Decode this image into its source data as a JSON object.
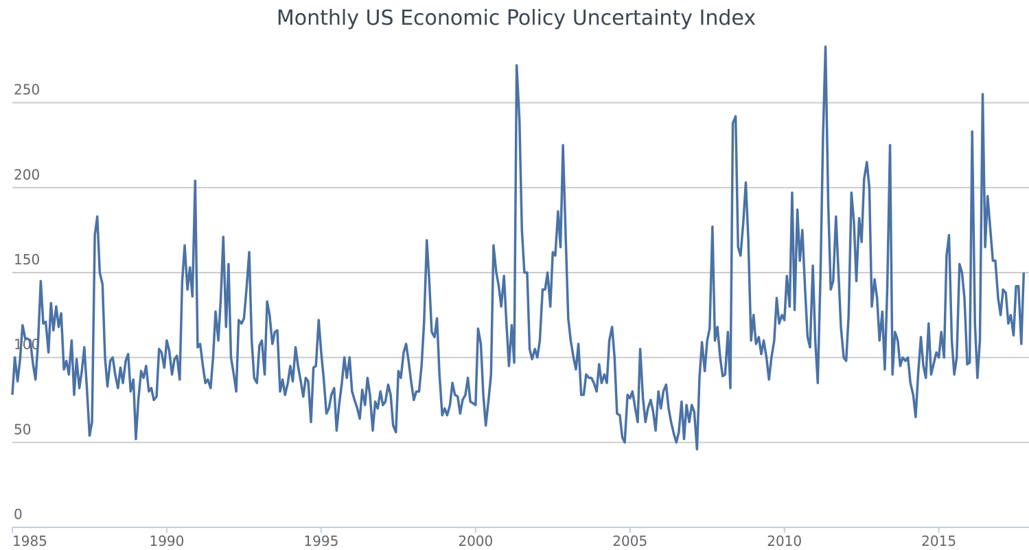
{
  "chart_data": {
    "type": "line",
    "title": "Monthly US Economic Policy Uncertainty Index",
    "x": [
      1985,
      1985.08,
      1985.17,
      1985.25,
      1985.33,
      1985.42,
      1985.5,
      1985.58,
      1985.67,
      1985.75,
      1985.83,
      1985.92,
      1986,
      1986.08,
      1986.17,
      1986.25,
      1986.33,
      1986.42,
      1986.5,
      1986.58,
      1986.67,
      1986.75,
      1986.83,
      1986.92,
      1987,
      1987.08,
      1987.17,
      1987.25,
      1987.33,
      1987.42,
      1987.5,
      1987.58,
      1987.67,
      1987.75,
      1987.83,
      1987.92,
      1988,
      1988.08,
      1988.17,
      1988.25,
      1988.33,
      1988.42,
      1988.5,
      1988.58,
      1988.67,
      1988.75,
      1988.83,
      1988.92,
      1989,
      1989.08,
      1989.17,
      1989.25,
      1989.33,
      1989.42,
      1989.5,
      1989.58,
      1989.67,
      1989.75,
      1989.83,
      1989.92,
      1990,
      1990.08,
      1990.17,
      1990.25,
      1990.33,
      1990.42,
      1990.5,
      1990.58,
      1990.67,
      1990.75,
      1990.83,
      1990.92,
      1991,
      1991.08,
      1991.17,
      1991.25,
      1991.33,
      1991.42,
      1991.5,
      1991.58,
      1991.67,
      1991.75,
      1991.83,
      1991.92,
      1992,
      1992.08,
      1992.17,
      1992.25,
      1992.33,
      1992.42,
      1992.5,
      1992.58,
      1992.67,
      1992.75,
      1992.83,
      1992.92,
      1993,
      1993.08,
      1993.17,
      1993.25,
      1993.33,
      1993.42,
      1993.5,
      1993.58,
      1993.67,
      1993.75,
      1993.83,
      1993.92,
      1994,
      1994.08,
      1994.17,
      1994.25,
      1994.33,
      1994.42,
      1994.5,
      1994.58,
      1994.67,
      1994.75,
      1994.83,
      1994.92,
      1995,
      1995.08,
      1995.17,
      1995.25,
      1995.33,
      1995.42,
      1995.5,
      1995.58,
      1995.67,
      1995.75,
      1995.83,
      1995.92,
      1996,
      1996.08,
      1996.17,
      1996.25,
      1996.33,
      1996.42,
      1996.5,
      1996.58,
      1996.67,
      1996.75,
      1996.83,
      1996.92,
      1997,
      1997.08,
      1997.17,
      1997.25,
      1997.33,
      1997.42,
      1997.5,
      1997.58,
      1997.67,
      1997.75,
      1997.83,
      1997.92,
      1998,
      1998.08,
      1998.17,
      1998.25,
      1998.33,
      1998.42,
      1998.5,
      1998.58,
      1998.67,
      1998.75,
      1998.83,
      1998.92,
      1999,
      1999.08,
      1999.17,
      1999.25,
      1999.33,
      1999.42,
      1999.5,
      1999.58,
      1999.67,
      1999.75,
      1999.83,
      1999.92,
      2000,
      2000.08,
      2000.17,
      2000.25,
      2000.33,
      2000.42,
      2000.5,
      2000.58,
      2000.67,
      2000.75,
      2000.83,
      2000.92,
      2001,
      2001.08,
      2001.17,
      2001.25,
      2001.33,
      2001.42,
      2001.5,
      2001.58,
      2001.67,
      2001.75,
      2001.83,
      2001.92,
      2002,
      2002.08,
      2002.17,
      2002.25,
      2002.33,
      2002.42,
      2002.5,
      2002.58,
      2002.67,
      2002.75,
      2002.83,
      2002.92,
      2003,
      2003.08,
      2003.17,
      2003.25,
      2003.33,
      2003.42,
      2003.5,
      2003.58,
      2003.67,
      2003.75,
      2003.83,
      2003.92,
      2004,
      2004.08,
      2004.17,
      2004.25,
      2004.33,
      2004.42,
      2004.5,
      2004.58,
      2004.67,
      2004.75,
      2004.83,
      2004.92,
      2005,
      2005.08,
      2005.17,
      2005.25,
      2005.33,
      2005.42,
      2005.5,
      2005.58,
      2005.67,
      2005.75,
      2005.83,
      2005.92,
      2006,
      2006.08,
      2006.17,
      2006.25,
      2006.33,
      2006.42,
      2006.5,
      2006.58,
      2006.67,
      2006.75,
      2006.83,
      2006.92,
      2007,
      2007.08,
      2007.17,
      2007.25,
      2007.33,
      2007.42,
      2007.5,
      2007.58,
      2007.67,
      2007.75,
      2007.83,
      2007.92,
      2008,
      2008.08,
      2008.17,
      2008.25,
      2008.33,
      2008.42,
      2008.5,
      2008.58,
      2008.67,
      2008.75,
      2008.83,
      2008.92,
      2009,
      2009.08,
      2009.17,
      2009.25,
      2009.33,
      2009.42,
      2009.5,
      2009.58,
      2009.67,
      2009.75,
      2009.83,
      2009.92,
      2010,
      2010.08,
      2010.17,
      2010.25,
      2010.33,
      2010.42,
      2010.5,
      2010.58,
      2010.67,
      2010.75,
      2010.83,
      2010.92,
      2011,
      2011.08,
      2011.17,
      2011.25,
      2011.33,
      2011.42,
      2011.5,
      2011.58,
      2011.67,
      2011.75,
      2011.83,
      2011.92,
      2012,
      2012.08,
      2012.17,
      2012.25,
      2012.33,
      2012.42,
      2012.5,
      2012.58,
      2012.67,
      2012.75,
      2012.83,
      2012.92,
      2013,
      2013.08,
      2013.17,
      2013.25,
      2013.33,
      2013.42,
      2013.5,
      2013.58,
      2013.67,
      2013.75,
      2013.83,
      2013.92,
      2014,
      2014.08,
      2014.17,
      2014.25,
      2014.33,
      2014.42,
      2014.5,
      2014.58,
      2014.67,
      2014.75,
      2014.83,
      2014.92,
      2015,
      2015.08,
      2015.17,
      2015.25,
      2015.33,
      2015.42,
      2015.5,
      2015.58,
      2015.67,
      2015.75,
      2015.83,
      2015.92,
      2016,
      2016.08,
      2016.17,
      2016.25,
      2016.33,
      2016.42,
      2016.5,
      2016.58,
      2016.67,
      2016.75,
      2016.83,
      2016.92,
      2017,
      2017.08,
      2017.17,
      2017.25,
      2017.33,
      2017.42,
      2017.5,
      2017.58,
      2017.67,
      2017.75
    ],
    "values": [
      78,
      100,
      86,
      99,
      119,
      111,
      111,
      110,
      96,
      87,
      108,
      145,
      120,
      121,
      103,
      132,
      116,
      130,
      118,
      126,
      93,
      98,
      90,
      110,
      78,
      99,
      82,
      92,
      106,
      80,
      54,
      62,
      172,
      183,
      150,
      143,
      100,
      83,
      98,
      100,
      90,
      82,
      94,
      85,
      98,
      102,
      80,
      87,
      52,
      75,
      92,
      88,
      95,
      80,
      82,
      75,
      77,
      105,
      103,
      94,
      110,
      104,
      90,
      99,
      101,
      87,
      145,
      166,
      140,
      153,
      136,
      204,
      106,
      108,
      95,
      85,
      87,
      82,
      100,
      127,
      110,
      135,
      171,
      118,
      155,
      100,
      90,
      80,
      122,
      120,
      123,
      140,
      162,
      110,
      88,
      85,
      107,
      110,
      90,
      133,
      125,
      108,
      115,
      116,
      80,
      87,
      78,
      85,
      95,
      86,
      106,
      95,
      87,
      77,
      88,
      86,
      62,
      94,
      95,
      122,
      103,
      88,
      67,
      70,
      78,
      82,
      57,
      72,
      85,
      100,
      88,
      100,
      80,
      75,
      70,
      64,
      81,
      72,
      88,
      78,
      57,
      74,
      70,
      80,
      72,
      74,
      84,
      78,
      60,
      56,
      92,
      88,
      103,
      108,
      98,
      85,
      75,
      80,
      80,
      95,
      120,
      169,
      145,
      115,
      112,
      123,
      90,
      66,
      70,
      66,
      72,
      85,
      78,
      77,
      67,
      75,
      78,
      88,
      74,
      73,
      72,
      117,
      108,
      78,
      60,
      75,
      90,
      166,
      150,
      142,
      130,
      148,
      120,
      95,
      119,
      97,
      272,
      240,
      175,
      150,
      150,
      105,
      99,
      105,
      100,
      110,
      140,
      140,
      150,
      130,
      162,
      160,
      186,
      165,
      225,
      170,
      123,
      110,
      100,
      93,
      108,
      78,
      78,
      90,
      88,
      88,
      85,
      80,
      96,
      85,
      90,
      85,
      110,
      118,
      100,
      67,
      66,
      53,
      50,
      78,
      76,
      80,
      70,
      62,
      105,
      76,
      62,
      70,
      75,
      68,
      57,
      80,
      70,
      80,
      84,
      70,
      62,
      55,
      50,
      56,
      74,
      52,
      72,
      62,
      72,
      68,
      46,
      88,
      109,
      92,
      110,
      117,
      177,
      110,
      118,
      100,
      89,
      90,
      115,
      82,
      238,
      242,
      165,
      160,
      180,
      203,
      170,
      110,
      125,
      108,
      112,
      102,
      110,
      100,
      87,
      100,
      110,
      135,
      120,
      125,
      122,
      148,
      130,
      197,
      128,
      187,
      157,
      175,
      140,
      112,
      106,
      154,
      110,
      85,
      150,
      230,
      283,
      190,
      140,
      145,
      183,
      150,
      118,
      100,
      98,
      125,
      197,
      180,
      145,
      182,
      168,
      205,
      215,
      200,
      130,
      146,
      135,
      110,
      127,
      93,
      140,
      225,
      90,
      115,
      110,
      95,
      100,
      98,
      100,
      85,
      78,
      65,
      90,
      112,
      95,
      88,
      120,
      90,
      96,
      103,
      100,
      115,
      100,
      160,
      172,
      110,
      90,
      100,
      155,
      150,
      135,
      96,
      97,
      233,
      120,
      88,
      110,
      255,
      165,
      195,
      175,
      157,
      157,
      135,
      125,
      140,
      138,
      120,
      125,
      113,
      142,
      142,
      108,
      150
    ],
    "color": "#4a72a6",
    "xlim": [
      1985,
      2017.92
    ],
    "xticks": [
      1985,
      1990,
      1995,
      2000,
      2005,
      2010,
      2015
    ],
    "ylim": [
      0,
      285
    ],
    "yticks": [
      0,
      50,
      100,
      150,
      200,
      250
    ],
    "grid": true
  }
}
